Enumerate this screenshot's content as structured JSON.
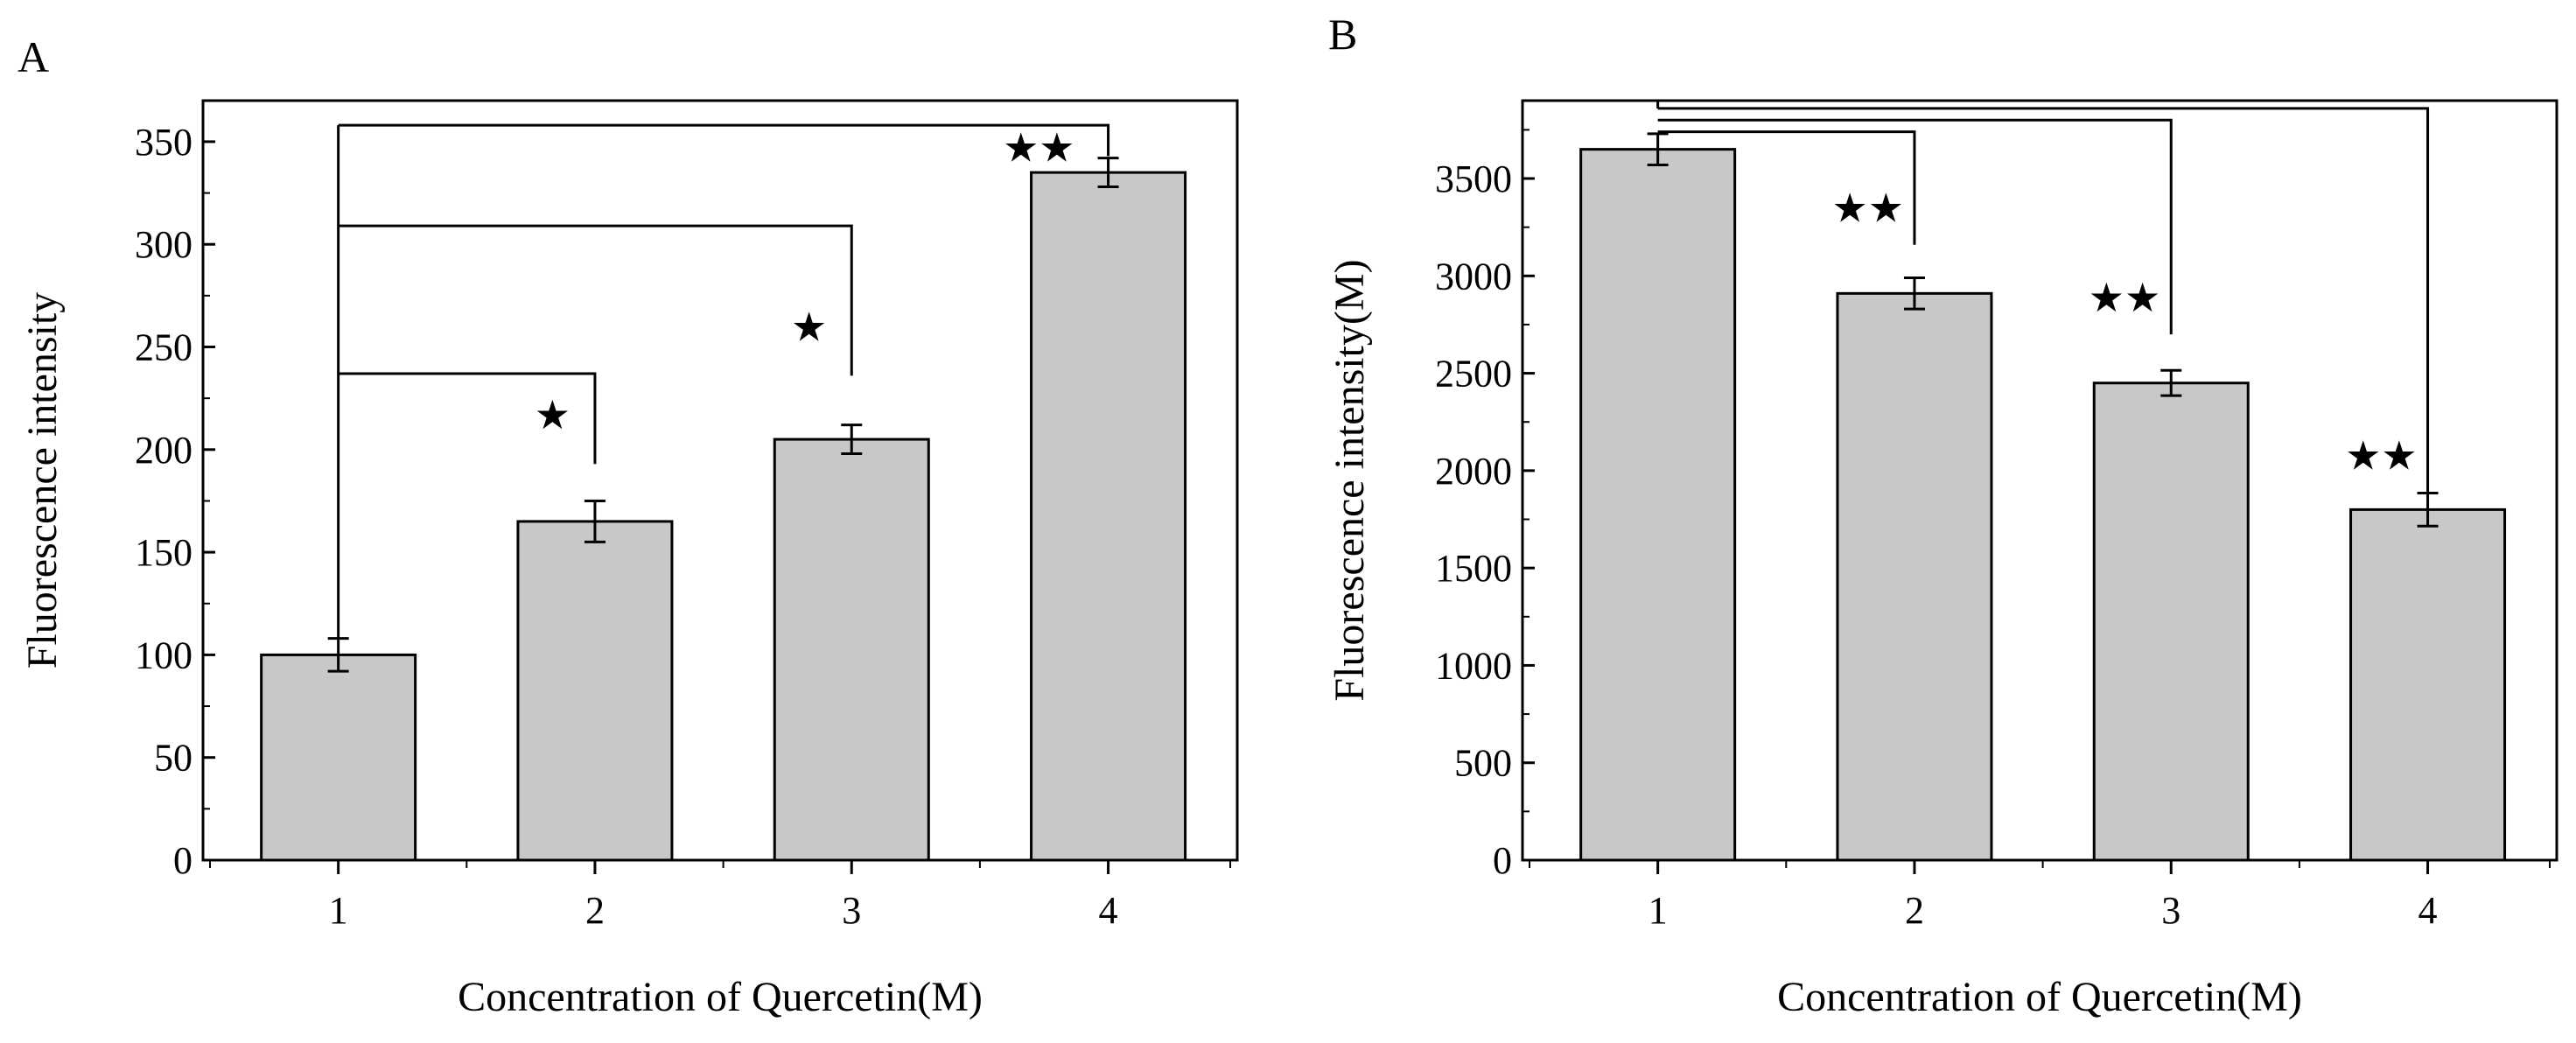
{
  "chart_data": [
    {
      "type": "bar",
      "panel": "A",
      "categories": [
        "1",
        "2",
        "3",
        "4"
      ],
      "values": [
        100,
        165,
        205,
        335
      ],
      "errors": [
        8,
        10,
        7,
        7
      ],
      "xlabel": "Concentration of Quercetin(M)",
      "ylabel": "Fluorescence intensity",
      "ylim": [
        0,
        370
      ],
      "yticks": [
        "0",
        "50",
        "100",
        "150",
        "200",
        "250",
        "300",
        "350"
      ],
      "significance": [
        {
          "from": 1,
          "to": 2,
          "marker": "★",
          "level": 237,
          "drop": 193
        },
        {
          "from": 1,
          "to": 3,
          "marker": "★",
          "level": 309,
          "drop": 236
        },
        {
          "from": 1,
          "to": 4,
          "marker": "★★",
          "level": 358,
          "drop": 343
        }
      ],
      "bar_color": "#c8c8c8"
    },
    {
      "type": "bar",
      "panel": "B",
      "categories": [
        "1",
        "2",
        "3",
        "4"
      ],
      "values": [
        3650,
        2910,
        2450,
        1800
      ],
      "errors": [
        80,
        80,
        65,
        85
      ],
      "xlabel": "Concentration of Quercetin(M)",
      "ylabel": "Fluorescence intensity(M)",
      "ylim": [
        0,
        3900
      ],
      "yticks": [
        "0",
        "500",
        "1000",
        "1500",
        "2000",
        "2500",
        "3000",
        "3500"
      ],
      "significance": [
        {
          "from": 1,
          "to": 2,
          "marker": "★★",
          "level": 3740,
          "drop": 3160
        },
        {
          "from": 1,
          "to": 3,
          "marker": "★★",
          "level": 3800,
          "drop": 2700
        },
        {
          "from": 1,
          "to": 4,
          "marker": "★★",
          "level": 3860,
          "drop": 1890
        }
      ],
      "bar_color": "#c8c8c8"
    }
  ]
}
